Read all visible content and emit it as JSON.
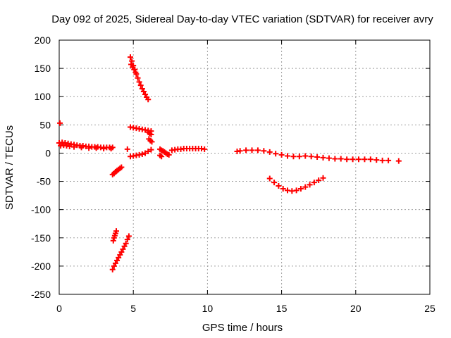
{
  "chart_data": {
    "type": "scatter",
    "title": "Day 092 of 2025, Sidereal Day-to-day VTEC variation (SDTVAR) for receiver avry",
    "xlabel": "GPS time / hours",
    "ylabel": "SDTVAR / TECUs",
    "xlim": [
      0,
      25
    ],
    "ylim": [
      -250,
      200
    ],
    "xticks": [
      0,
      5,
      10,
      15,
      20,
      25
    ],
    "yticks": [
      -250,
      -200,
      -150,
      -100,
      -50,
      0,
      50,
      100,
      150,
      200
    ],
    "grid": true,
    "marker": "plus",
    "color": "#ff0000",
    "series": [
      {
        "name": "arc-early",
        "points": [
          [
            0.0,
            18
          ],
          [
            0.2,
            19
          ],
          [
            0.4,
            18
          ],
          [
            0.6,
            17
          ],
          [
            0.8,
            16
          ],
          [
            1.0,
            15
          ],
          [
            1.2,
            14
          ],
          [
            1.4,
            13
          ],
          [
            1.6,
            13
          ],
          [
            1.8,
            12
          ],
          [
            2.0,
            12
          ],
          [
            2.2,
            11
          ],
          [
            2.4,
            11
          ],
          [
            2.6,
            11
          ],
          [
            2.8,
            10
          ],
          [
            3.0,
            10
          ],
          [
            3.2,
            10
          ],
          [
            3.4,
            10
          ],
          [
            3.6,
            10
          ]
        ]
      },
      {
        "name": "isolated-start",
        "points": [
          [
            0.05,
            53
          ]
        ]
      },
      {
        "name": "arc-early-b",
        "points": [
          [
            0.1,
            13
          ],
          [
            0.3,
            14
          ],
          [
            0.5,
            13
          ],
          [
            0.7,
            12
          ],
          [
            1.0,
            11
          ],
          [
            1.5,
            10
          ],
          [
            2.0,
            9
          ],
          [
            2.5,
            9
          ],
          [
            3.0,
            8
          ],
          [
            3.5,
            8
          ]
        ]
      },
      {
        "name": "drop-a",
        "points": [
          [
            3.6,
            -206
          ],
          [
            3.7,
            -200
          ],
          [
            3.8,
            -195
          ],
          [
            3.9,
            -190
          ],
          [
            4.0,
            -185
          ],
          [
            4.1,
            -180
          ],
          [
            4.2,
            -175
          ],
          [
            4.3,
            -170
          ],
          [
            4.4,
            -165
          ],
          [
            4.5,
            -160
          ],
          [
            4.6,
            -153
          ],
          [
            4.7,
            -147
          ]
        ]
      },
      {
        "name": "drop-b",
        "points": [
          [
            3.65,
            -155
          ],
          [
            3.7,
            -150
          ],
          [
            3.75,
            -146
          ],
          [
            3.8,
            -142
          ],
          [
            3.85,
            -138
          ]
        ]
      },
      {
        "name": "neg-short",
        "points": [
          [
            3.6,
            -38
          ],
          [
            3.7,
            -36
          ],
          [
            3.8,
            -33
          ],
          [
            3.9,
            -31
          ],
          [
            4.0,
            -29
          ],
          [
            4.1,
            -27
          ],
          [
            4.2,
            -25
          ]
        ]
      },
      {
        "name": "isolated-mid",
        "points": [
          [
            4.6,
            7
          ]
        ]
      },
      {
        "name": "rise-a",
        "points": [
          [
            4.8,
            170
          ],
          [
            4.9,
            163
          ],
          [
            5.0,
            155
          ],
          [
            5.1,
            148
          ],
          [
            5.2,
            140
          ],
          [
            5.3,
            133
          ],
          [
            5.4,
            126
          ],
          [
            5.5,
            120
          ],
          [
            5.6,
            114
          ],
          [
            5.7,
            109
          ],
          [
            5.8,
            104
          ],
          [
            5.9,
            99
          ],
          [
            6.0,
            95
          ]
        ]
      },
      {
        "name": "rise-b",
        "points": [
          [
            4.85,
            157
          ],
          [
            4.95,
            152
          ],
          [
            5.05,
            148
          ],
          [
            5.15,
            143
          ]
        ]
      },
      {
        "name": "mid-45",
        "points": [
          [
            4.8,
            46
          ],
          [
            5.0,
            45
          ],
          [
            5.2,
            44
          ],
          [
            5.4,
            43
          ],
          [
            5.6,
            42
          ],
          [
            5.8,
            41
          ],
          [
            6.0,
            40
          ],
          [
            6.2,
            39
          ]
        ]
      },
      {
        "name": "mid-zero",
        "points": [
          [
            4.8,
            -6
          ],
          [
            5.0,
            -5
          ],
          [
            5.2,
            -4
          ],
          [
            5.4,
            -3
          ],
          [
            5.6,
            -2
          ],
          [
            5.8,
            0
          ],
          [
            6.0,
            3
          ],
          [
            6.2,
            6
          ]
        ]
      },
      {
        "name": "small-clusters",
        "points": [
          [
            6.0,
            37
          ],
          [
            6.1,
            35
          ],
          [
            6.2,
            33
          ],
          [
            6.05,
            25
          ],
          [
            6.15,
            22
          ],
          [
            6.25,
            20
          ]
        ]
      },
      {
        "name": "arc-7",
        "points": [
          [
            6.8,
            7
          ],
          [
            6.9,
            5
          ],
          [
            7.0,
            4
          ],
          [
            7.1,
            2
          ],
          [
            7.2,
            0
          ],
          [
            7.3,
            -2
          ],
          [
            7.4,
            -3
          ],
          [
            6.8,
            -4
          ],
          [
            6.9,
            -6
          ]
        ]
      },
      {
        "name": "arc-8to10",
        "points": [
          [
            7.6,
            5
          ],
          [
            7.8,
            6
          ],
          [
            8.0,
            7
          ],
          [
            8.2,
            7
          ],
          [
            8.4,
            8
          ],
          [
            8.6,
            8
          ],
          [
            8.8,
            8
          ],
          [
            9.0,
            8
          ],
          [
            9.2,
            8
          ],
          [
            9.4,
            8
          ],
          [
            9.6,
            8
          ],
          [
            9.8,
            7
          ]
        ]
      },
      {
        "name": "isolated-12",
        "points": [
          [
            12.0,
            3
          ]
        ]
      },
      {
        "name": "arc-12to22",
        "points": [
          [
            12.2,
            4
          ],
          [
            12.6,
            5
          ],
          [
            13.0,
            5
          ],
          [
            13.4,
            5
          ],
          [
            13.8,
            4
          ],
          [
            14.2,
            2
          ],
          [
            14.6,
            -1
          ],
          [
            15.0,
            -3
          ],
          [
            15.4,
            -5
          ],
          [
            15.8,
            -6
          ],
          [
            16.2,
            -6
          ],
          [
            16.6,
            -5
          ],
          [
            17.0,
            -6
          ],
          [
            17.4,
            -7
          ],
          [
            17.8,
            -8
          ],
          [
            18.2,
            -9
          ],
          [
            18.6,
            -10
          ],
          [
            19.0,
            -10
          ],
          [
            19.4,
            -11
          ],
          [
            19.8,
            -11
          ],
          [
            20.2,
            -11
          ],
          [
            20.6,
            -11
          ],
          [
            21.0,
            -11
          ],
          [
            21.4,
            -12
          ],
          [
            21.8,
            -13
          ],
          [
            22.2,
            -13
          ]
        ]
      },
      {
        "name": "isolated-end",
        "points": [
          [
            22.9,
            -14
          ]
        ]
      },
      {
        "name": "dip",
        "points": [
          [
            14.2,
            -45
          ],
          [
            14.5,
            -52
          ],
          [
            14.8,
            -58
          ],
          [
            15.1,
            -63
          ],
          [
            15.4,
            -66
          ],
          [
            15.7,
            -67
          ],
          [
            16.0,
            -66
          ],
          [
            16.3,
            -63
          ],
          [
            16.6,
            -60
          ],
          [
            16.9,
            -56
          ],
          [
            17.2,
            -52
          ],
          [
            17.5,
            -48
          ],
          [
            17.8,
            -44
          ]
        ]
      }
    ]
  }
}
